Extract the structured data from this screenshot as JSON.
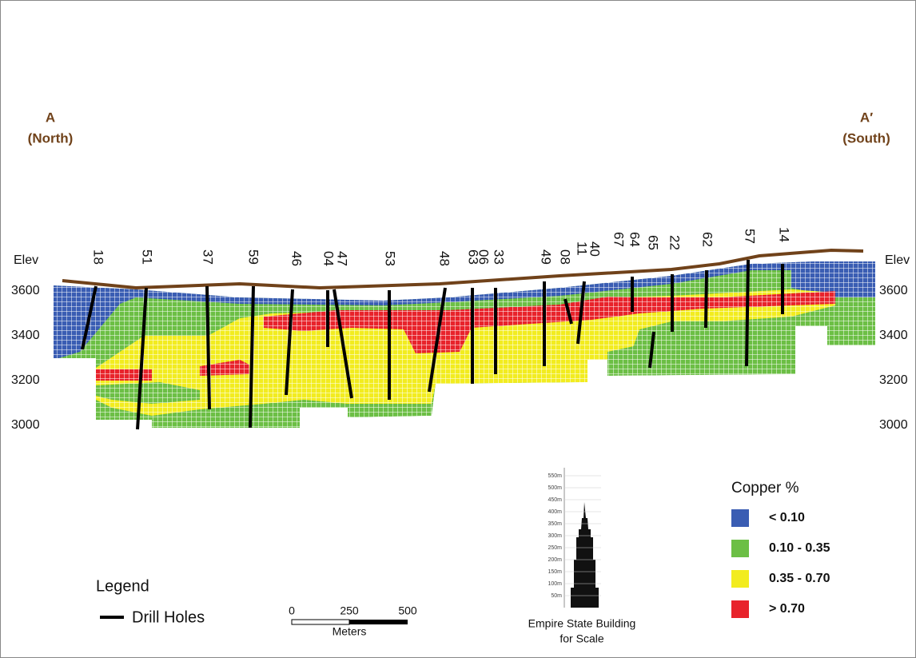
{
  "header": {
    "left": {
      "letter": "A",
      "direction": "(North)"
    },
    "right": {
      "letter": "A′",
      "direction": "(South)"
    }
  },
  "elevation_axis": {
    "label": "Elev",
    "ticks": [
      3600,
      3400,
      3200,
      3000
    ]
  },
  "drill_holes": [
    "18",
    "51",
    "37",
    "59",
    "46",
    "04",
    "47",
    "53",
    "48",
    "63",
    "06",
    "33",
    "49",
    "08",
    "11",
    "40",
    "67",
    "64",
    "65",
    "22",
    "62",
    "57",
    "14"
  ],
  "legend": {
    "title": "Legend",
    "item": "Drill Holes"
  },
  "scale_bar": {
    "ticks": [
      "0",
      "250",
      "500"
    ],
    "unit": "Meters"
  },
  "building": {
    "ticks": [
      "50m",
      "100m",
      "150m",
      "200m",
      "250m",
      "300m",
      "350m",
      "400m",
      "450m",
      "500m",
      "550m"
    ],
    "caption": [
      "Empire State Building",
      "for Scale"
    ]
  },
  "copper": {
    "title": "Copper %",
    "classes": [
      {
        "label": "< 0.10",
        "color": "#3a5db3"
      },
      {
        "label": "0.10 - 0.35",
        "color": "#6cbf45"
      },
      {
        "label": "0.35 - 0.70",
        "color": "#f2ec1f"
      },
      {
        "label": "> 0.70",
        "color": "#e8232b"
      }
    ]
  }
}
